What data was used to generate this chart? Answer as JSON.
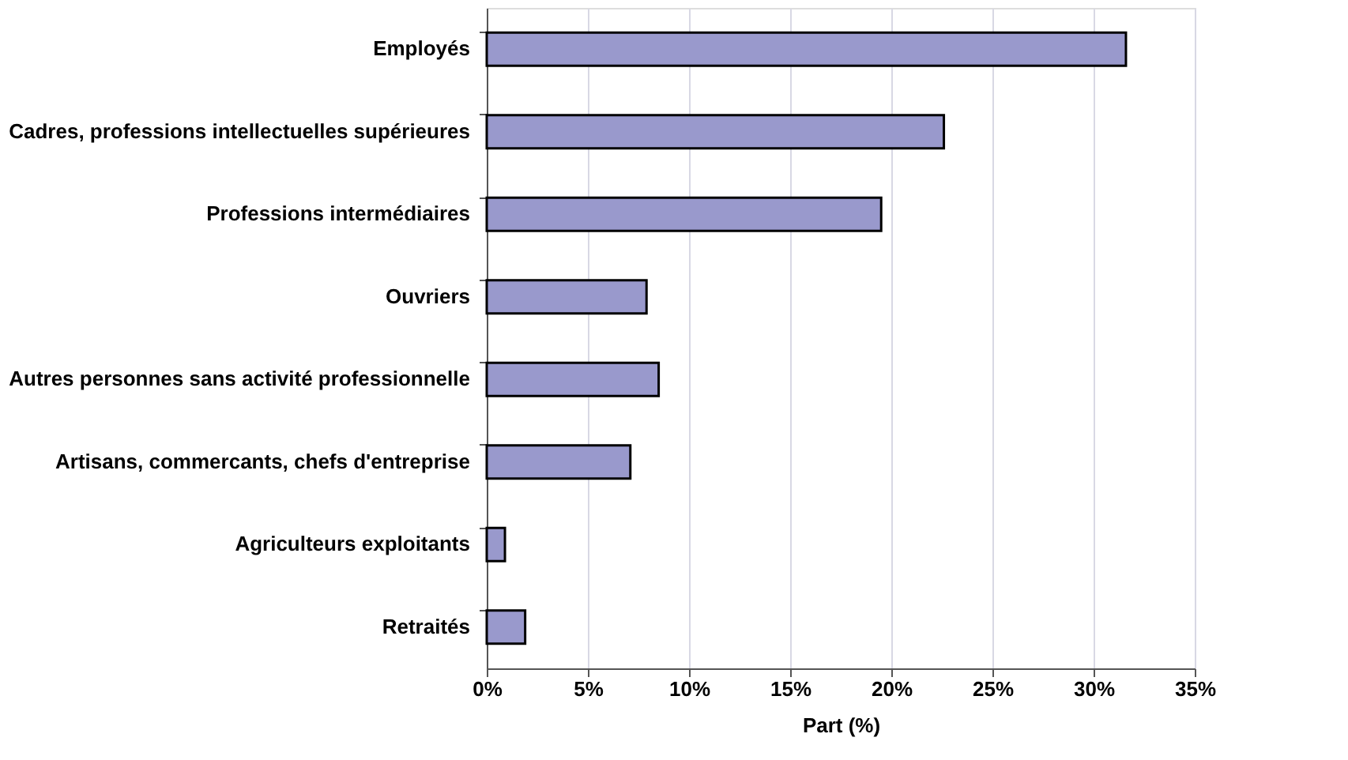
{
  "chart_data": {
    "type": "bar",
    "orientation": "horizontal",
    "xlabel": "Part (%)",
    "categories": [
      "Employés",
      "Cadres, professions intellectuelles supérieures",
      "Professions intermédiaires",
      "Ouvriers",
      "Autres personnes sans activité professionnelle",
      "Artisans, commercants, chefs d'entreprise",
      "Agriculteurs exploitants",
      "Retraités"
    ],
    "values": [
      31.6,
      22.6,
      19.5,
      7.9,
      8.5,
      7.1,
      0.9,
      1.9
    ],
    "color": "#9999cc",
    "xlim": [
      0,
      35
    ],
    "xticks": [
      {
        "value": 0,
        "label": "0%"
      },
      {
        "value": 5,
        "label": "5%"
      },
      {
        "value": 10,
        "label": "10%"
      },
      {
        "value": 15,
        "label": "15%"
      },
      {
        "value": 20,
        "label": "20%"
      },
      {
        "value": 25,
        "label": "25%"
      },
      {
        "value": 30,
        "label": "30%"
      },
      {
        "value": 35,
        "label": "35%"
      }
    ],
    "grid": "x"
  }
}
